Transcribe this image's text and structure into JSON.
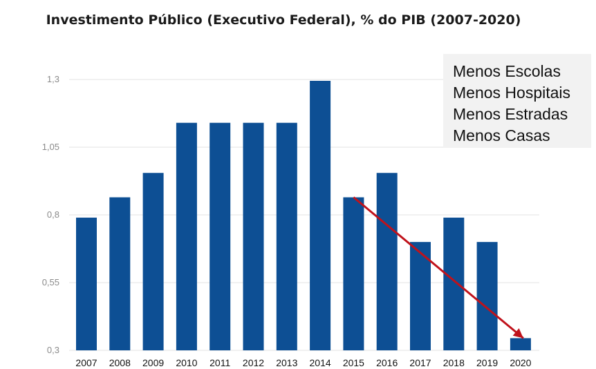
{
  "title": "Investimento Público (Executivo Federal), % do PIB (2007-2020)",
  "notes": [
    "Menos Escolas",
    "Menos Hospitais",
    "Menos Estradas",
    "Menos Casas"
  ],
  "chart_data": {
    "type": "bar",
    "title": "Investimento Público (Executivo Federal), % do PIB (2007-2020)",
    "xlabel": "",
    "ylabel": "",
    "categories": [
      "2007",
      "2008",
      "2009",
      "2010",
      "2011",
      "2012",
      "2013",
      "2014",
      "2015",
      "2016",
      "2017",
      "2018",
      "2019",
      "2020"
    ],
    "values": [
      0.79,
      0.865,
      0.955,
      1.14,
      1.14,
      1.14,
      1.14,
      1.295,
      0.865,
      0.955,
      0.7,
      0.79,
      0.7,
      0.345
    ],
    "yticks": [
      "1,3",
      "1,05",
      "0,8",
      "0,55",
      "0,3"
    ],
    "ylim": [
      0.3,
      1.3
    ],
    "grid": true,
    "bar_color": "#0d4f94",
    "arrow_color": "#c0121b",
    "arrow_from": "2015",
    "arrow_to": "2020"
  }
}
